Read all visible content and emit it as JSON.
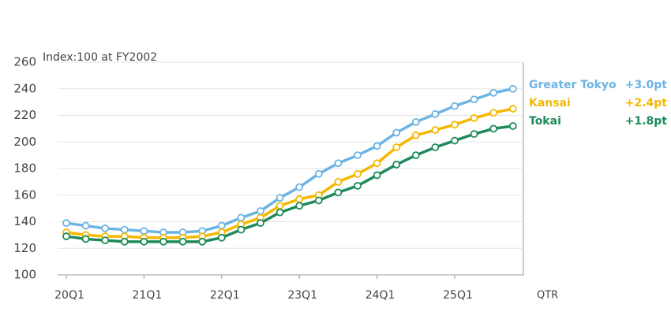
{
  "chart_data": {
    "type": "line",
    "y_axis_label": "Index:100 at FY2002",
    "x_axis_label": "QTR",
    "categories": [
      "20Q1",
      null,
      null,
      null,
      "21Q1",
      null,
      null,
      null,
      "22Q1",
      null,
      null,
      null,
      "23Q1",
      null,
      null,
      null,
      "24Q1",
      null,
      null,
      null,
      "25Q1",
      null,
      null,
      null
    ],
    "series": [
      {
        "name": "Greater Tokyo",
        "change_label": "+3.0pt",
        "color": "#6cb4e4",
        "values": [
          139,
          137,
          135,
          134,
          133,
          132,
          132,
          133,
          137,
          143,
          148,
          158,
          166,
          176,
          184,
          190,
          197,
          207,
          215,
          221,
          227,
          232,
          237,
          240
        ]
      },
      {
        "name": "Kansai",
        "change_label": "+2.4pt",
        "color": "#f5b800",
        "values": [
          132,
          130,
          129,
          129,
          128,
          128,
          128,
          129,
          132,
          138,
          143,
          152,
          157,
          160,
          170,
          176,
          184,
          196,
          205,
          209,
          213,
          218,
          222,
          225
        ]
      },
      {
        "name": "Tokai",
        "change_label": "+1.8pt",
        "color": "#1e8a5a",
        "values": [
          129,
          127,
          126,
          125,
          125,
          125,
          125,
          125,
          128,
          134,
          139,
          147,
          152,
          156,
          162,
          167,
          175,
          183,
          190,
          196,
          201,
          206,
          210,
          212
        ]
      }
    ],
    "ylim": [
      100,
      260
    ],
    "yticks": [
      100,
      120,
      140,
      160,
      180,
      200,
      220,
      240,
      260
    ],
    "grid": true
  }
}
